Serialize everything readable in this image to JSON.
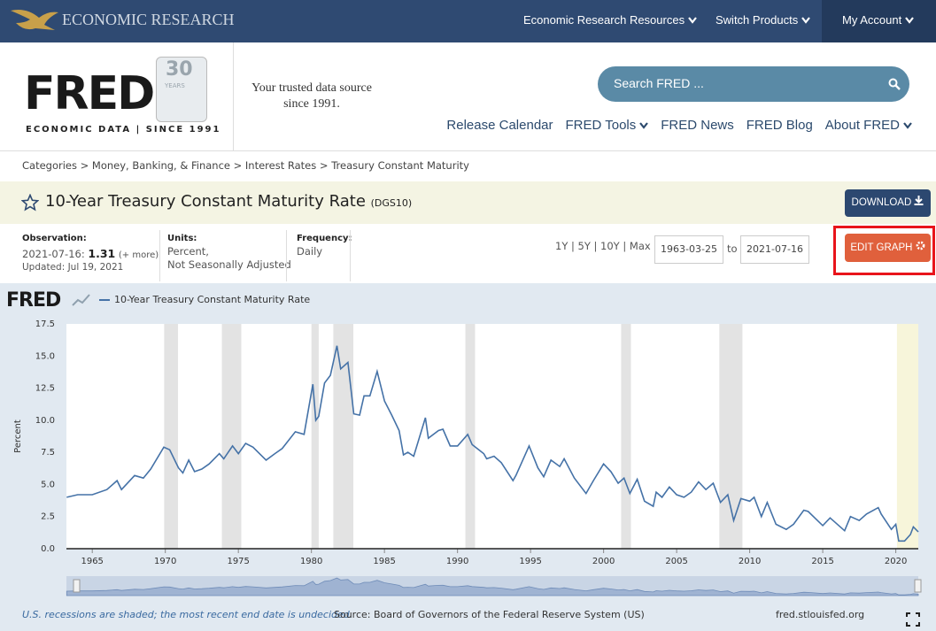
{
  "nav": {
    "brand": "ECONOMIC RESEARCH",
    "links": [
      "Economic Research Resources",
      "Switch Products",
      "My Account"
    ]
  },
  "header": {
    "logo": "FRED",
    "logo_badge": "30",
    "logo_badge_sub": "YEARS",
    "logo_tagline": "ECONOMIC DATA | SINCE 1991",
    "tagline": "Your trusted data source since 1991.",
    "search_placeholder": "Search FRED ...",
    "menu": [
      "Release Calendar",
      "FRED Tools",
      "FRED News",
      "FRED Blog",
      "About FRED"
    ]
  },
  "breadcrumb": "Categories > Money, Banking, & Finance > Interest Rates > Treasury Constant Maturity",
  "series_title": "10-Year Treasury Constant Maturity Rate",
  "series_id": "(DGS10)",
  "download": "DOWNLOAD",
  "observation": {
    "label": "Observation:",
    "date": "2021-07-16:",
    "value": "1.31",
    "more": "(+ more)",
    "updated": "Updated: Jul 19, 2021"
  },
  "units": {
    "label": "Units:",
    "lines": [
      "Percent,",
      "Not Seasonally Adjusted"
    ]
  },
  "frequency": {
    "label": "Frequency:",
    "value": "Daily"
  },
  "ranges": "1Y | 5Y | 10Y | Max",
  "date_from": "1963-03-25",
  "date_sep": "to",
  "date_to": "2021-07-16",
  "edit_graph": "EDIT GRAPH",
  "chart_data": {
    "type": "line",
    "logo": "FRED",
    "ylabel": "Percent",
    "x": [
      1963.25,
      1964,
      1965,
      1966,
      1966.7,
      1967,
      1967.9,
      1968.5,
      1969,
      1969.9,
      1970.3,
      1970.9,
      1971.2,
      1971.6,
      1972,
      1972.5,
      1973,
      1973.7,
      1974,
      1974.6,
      1975,
      1975.5,
      1976,
      1976.9,
      1977.5,
      1978,
      1978.9,
      1979.5,
      1980.1,
      1980.3,
      1980.5,
      1980.9,
      1981.3,
      1981.75,
      1982,
      1982.5,
      1982.9,
      1983.3,
      1983.6,
      1984,
      1984.5,
      1985,
      1985.5,
      1986,
      1986.3,
      1986.6,
      1987,
      1987.8,
      1988,
      1988.7,
      1989,
      1989.5,
      1990,
      1990.7,
      1991,
      1991.8,
      1992,
      1992.5,
      1993,
      1993.8,
      1994,
      1994.9,
      1995.5,
      1995.9,
      1996.4,
      1997,
      1997.3,
      1998,
      1998.8,
      1999.3,
      2000,
      2000.5,
      2001,
      2001.4,
      2001.8,
      2002.3,
      2002.8,
      2003.4,
      2003.6,
      2004,
      2004.5,
      2005,
      2005.5,
      2006,
      2006.5,
      2007,
      2007.5,
      2008,
      2008.5,
      2008.9,
      2009.4,
      2010,
      2010.3,
      2010.8,
      2011.2,
      2011.8,
      2012.5,
      2013,
      2013.7,
      2014,
      2015,
      2015.5,
      2016.5,
      2016.9,
      2017.5,
      2018,
      2018.8,
      2019,
      2019.7,
      2020,
      2020.2,
      2020.6,
      2021,
      2021.2,
      2021.54
    ],
    "series": [
      {
        "name": "10-Year Treasury Constant Maturity Rate",
        "color": "#4572a7",
        "values": [
          4.0,
          4.2,
          4.2,
          4.6,
          5.3,
          4.6,
          5.7,
          5.5,
          6.2,
          7.9,
          7.7,
          6.3,
          5.9,
          6.9,
          6.0,
          6.2,
          6.6,
          7.4,
          7.0,
          8.0,
          7.4,
          8.2,
          7.9,
          6.9,
          7.4,
          7.8,
          9.1,
          8.9,
          12.8,
          10.0,
          10.3,
          12.9,
          13.5,
          15.8,
          14.0,
          14.5,
          10.5,
          10.4,
          11.9,
          11.9,
          13.8,
          11.5,
          10.4,
          9.2,
          7.3,
          7.5,
          7.2,
          10.2,
          8.6,
          9.2,
          9.3,
          8.0,
          8.0,
          8.9,
          8.1,
          7.4,
          7.0,
          7.2,
          6.7,
          5.3,
          5.7,
          8.0,
          6.3,
          5.6,
          6.9,
          6.4,
          7.0,
          5.5,
          4.3,
          5.3,
          6.6,
          6.0,
          5.1,
          5.5,
          4.3,
          5.4,
          3.7,
          3.3,
          4.4,
          4.0,
          4.8,
          4.2,
          4.0,
          4.4,
          5.2,
          4.6,
          5.1,
          3.6,
          4.2,
          2.2,
          3.9,
          3.7,
          4.0,
          2.5,
          3.6,
          1.9,
          1.5,
          1.9,
          3.0,
          2.9,
          1.8,
          2.4,
          1.4,
          2.5,
          2.2,
          2.7,
          3.2,
          2.7,
          1.5,
          1.9,
          0.6,
          0.6,
          1.1,
          1.7,
          1.31
        ]
      }
    ],
    "recessions": [
      [
        1969.92,
        1970.87
      ],
      [
        1973.87,
        1975.2
      ],
      [
        1980.0,
        1980.5
      ],
      [
        1981.5,
        1982.87
      ],
      [
        1990.54,
        1991.2
      ],
      [
        2001.2,
        2001.87
      ],
      [
        2007.92,
        2009.5
      ],
      [
        2020.08,
        2021.54
      ]
    ],
    "recession_color": "#e3e3e3",
    "recession_open_color": "#f7f5da",
    "xlim": [
      1963.23,
      2021.54
    ],
    "xticks": [
      1965,
      1970,
      1975,
      1980,
      1985,
      1990,
      1995,
      2000,
      2005,
      2010,
      2015,
      2020
    ],
    "ylim": [
      0,
      17.5
    ],
    "yticks": [
      {
        "value": 0,
        "label": "0.0"
      },
      2.5,
      {
        "value": 5,
        "label": "5.0"
      },
      7.5,
      {
        "value": 10,
        "label": "10.0"
      },
      12.5,
      {
        "value": 15,
        "label": "15.0"
      },
      17.5
    ],
    "grid": false
  },
  "footer": {
    "recession_note": "U.S. recessions are shaded; the most recent end date is undecided.",
    "source": "Source: Board of Governors of the Federal Reserve System (US)",
    "url": "fred.stlouisfed.org"
  }
}
